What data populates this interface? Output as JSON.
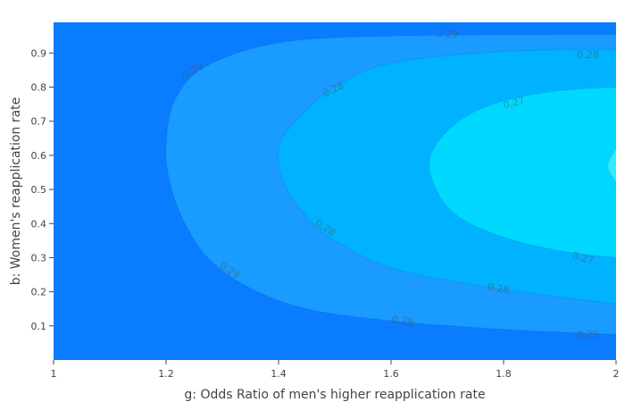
{
  "chart_data": {
    "type": "contour",
    "x": {
      "title": "g: Odds Ratio of men's higher reapplication rate",
      "range": [
        1,
        2
      ],
      "ticks": [
        1,
        1.2,
        1.4,
        1.6,
        1.8,
        2
      ],
      "tick_labels": [
        "1",
        "1.2",
        "1.4",
        "1.6",
        "1.8",
        "2"
      ]
    },
    "y": {
      "title": "b: Women's reapplication rate",
      "range": [
        0,
        0.99
      ],
      "ticks": [
        0.1,
        0.2,
        0.3,
        0.4,
        0.5,
        0.6,
        0.7,
        0.8,
        0.9
      ],
      "tick_labels": [
        "0.1",
        "0.2",
        "0.3",
        "0.4",
        "0.5",
        "0.6",
        "0.7",
        "0.8",
        "0.9"
      ]
    },
    "levels": [
      {
        "label": "0.29",
        "color": "#1a9bff"
      },
      {
        "label": "0.28",
        "color": "#00b2ff"
      },
      {
        "label": "0.27",
        "color": "#00c6ff"
      }
    ],
    "region_colors": {
      "above_0.29": "#0a7cff",
      "between_0.29_0.28": "#1a9bff",
      "between_0.28_0.27": "#00b2ff",
      "between_0.27_0.26": "#00d8ff",
      "below_0.26": "#33eaff"
    },
    "contour_lines": [
      {
        "level": "0.29",
        "points": [
          [
            2.0,
            0.955
          ],
          [
            1.6,
            0.95
          ],
          [
            1.4,
            0.93
          ],
          [
            1.27,
            0.86
          ],
          [
            1.215,
            0.76
          ],
          [
            1.2,
            0.62
          ],
          [
            1.21,
            0.5
          ],
          [
            1.24,
            0.38
          ],
          [
            1.28,
            0.29
          ],
          [
            1.35,
            0.21
          ],
          [
            1.45,
            0.15
          ],
          [
            1.6,
            0.115
          ],
          [
            1.8,
            0.09
          ],
          [
            2.0,
            0.075
          ]
        ]
      },
      {
        "level": "0.28",
        "points": [
          [
            2.0,
            0.91
          ],
          [
            1.8,
            0.905
          ],
          [
            1.6,
            0.87
          ],
          [
            1.5,
            0.8
          ],
          [
            1.43,
            0.7
          ],
          [
            1.4,
            0.62
          ],
          [
            1.41,
            0.52
          ],
          [
            1.45,
            0.42
          ],
          [
            1.5,
            0.35
          ],
          [
            1.6,
            0.27
          ],
          [
            1.75,
            0.22
          ],
          [
            1.9,
            0.185
          ],
          [
            2.0,
            0.165
          ]
        ]
      },
      {
        "level": "0.27",
        "points": [
          [
            2.0,
            0.8
          ],
          [
            1.9,
            0.79
          ],
          [
            1.8,
            0.76
          ],
          [
            1.72,
            0.7
          ],
          [
            1.67,
            0.6
          ],
          [
            1.68,
            0.5
          ],
          [
            1.72,
            0.42
          ],
          [
            1.8,
            0.36
          ],
          [
            1.9,
            0.32
          ],
          [
            2.0,
            0.3
          ]
        ]
      },
      {
        "level": "0.26",
        "points": [
          [
            2.0,
            0.62
          ],
          [
            1.985,
            0.57
          ],
          [
            2.0,
            0.52
          ]
        ]
      }
    ],
    "line_labels": [
      {
        "text": "0.29",
        "x": 1.25,
        "y": 0.84,
        "angle": -30
      },
      {
        "text": "0.29",
        "x": 1.7,
        "y": 0.945,
        "angle": 0
      },
      {
        "text": "0.29",
        "x": 1.31,
        "y": 0.255,
        "angle": 35
      },
      {
        "text": "0.29",
        "x": 1.62,
        "y": 0.105,
        "angle": 8
      },
      {
        "text": "0.29",
        "x": 1.95,
        "y": 0.065,
        "angle": 0
      },
      {
        "text": "0.28",
        "x": 1.5,
        "y": 0.785,
        "angle": -25
      },
      {
        "text": "0.28",
        "x": 1.95,
        "y": 0.885,
        "angle": 0
      },
      {
        "text": "0.28",
        "x": 1.48,
        "y": 0.38,
        "angle": 35
      },
      {
        "text": "0.28",
        "x": 1.79,
        "y": 0.2,
        "angle": 8
      },
      {
        "text": "0.27",
        "x": 1.82,
        "y": 0.745,
        "angle": -15
      },
      {
        "text": "0.27",
        "x": 1.94,
        "y": 0.29,
        "angle": 15
      }
    ]
  }
}
